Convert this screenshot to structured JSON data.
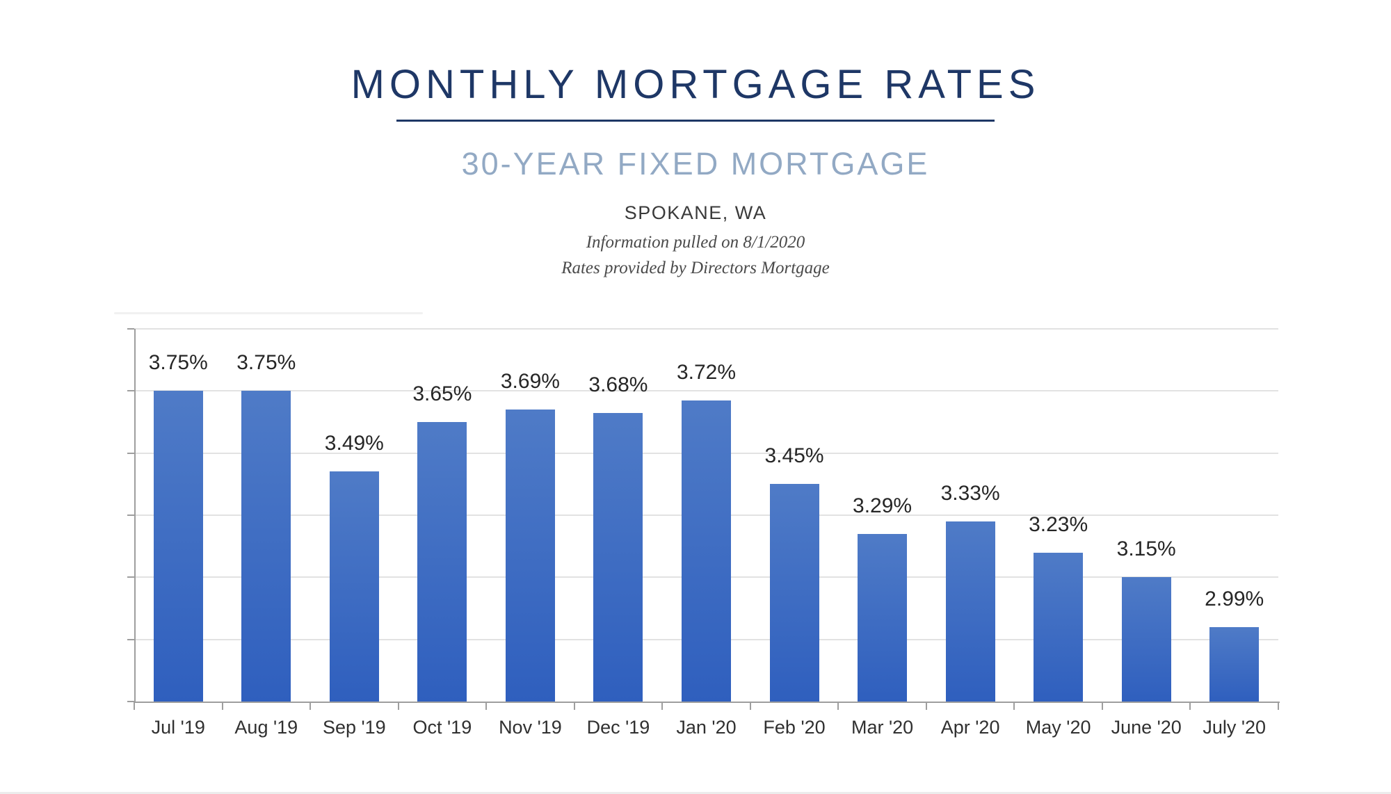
{
  "header": {
    "title": "MONTHLY MORTGAGE RATES",
    "subtitle": "30-YEAR FIXED MORTGAGE",
    "location": "SPOKANE, WA",
    "note_pulled": "Information pulled on 8/1/2020",
    "note_source": "Rates provided by Directors Mortgage"
  },
  "colors": {
    "title_navy": "#1E3766",
    "subtitle_blue": "#92A9C4",
    "bar_gradient_top": "#4F7BC7",
    "bar_gradient_bottom": "#2F5FBE",
    "axis_gray": "#9E9E9E",
    "gridline_gray": "#E2E2E2",
    "data_label_color": "#262626"
  },
  "chart_data": {
    "type": "bar",
    "title": "MONTHLY MORTGAGE RATES",
    "subtitle": "30-YEAR FIXED MORTGAGE",
    "categories": [
      "Jul '19",
      "Aug '19",
      "Sep '19",
      "Oct '19",
      "Nov '19",
      "Dec '19",
      "Jan '20",
      "Feb '20",
      "Mar '20",
      "Apr '20",
      "May '20",
      "June '20",
      "July '20"
    ],
    "values": [
      3.75,
      3.75,
      3.49,
      3.65,
      3.69,
      3.68,
      3.72,
      3.45,
      3.29,
      3.33,
      3.23,
      3.15,
      2.99
    ],
    "data_labels": [
      "3.75%",
      "3.75%",
      "3.49%",
      "3.65%",
      "3.69%",
      "3.68%",
      "3.72%",
      "3.45%",
      "3.29%",
      "3.33%",
      "3.23%",
      "3.15%",
      "2.99%"
    ],
    "xlabel": "",
    "ylabel": "",
    "ylim": [
      2.75,
      3.95
    ],
    "gridline_step": 0.2,
    "grid": true,
    "legend": false,
    "y_tick_labels_shown": false
  }
}
